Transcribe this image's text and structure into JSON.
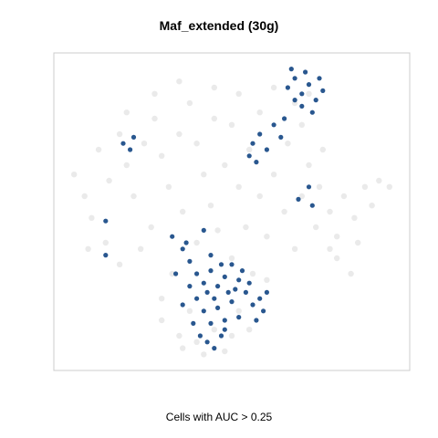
{
  "chart_data": {
    "type": "scatter",
    "title": "Maf_extended (30g)",
    "xlabel": "Cells with AUC > 0.25",
    "ylabel": "",
    "xlim": [
      0,
      1
    ],
    "ylim": [
      0,
      1
    ],
    "colors": {
      "background_points": "#d9d9d9",
      "highlighted_points": "#1d4e89",
      "frame": "#cccccc"
    },
    "regions": [
      {
        "name": "background-upper-left",
        "points": [
          [
            0.05,
            0.62
          ],
          [
            0.08,
            0.55
          ],
          [
            0.12,
            0.7
          ],
          [
            0.15,
            0.6
          ],
          [
            0.18,
            0.75
          ],
          [
            0.1,
            0.48
          ],
          [
            0.2,
            0.65
          ],
          [
            0.25,
            0.72
          ],
          [
            0.22,
            0.55
          ],
          [
            0.28,
            0.8
          ],
          [
            0.3,
            0.68
          ],
          [
            0.32,
            0.58
          ],
          [
            0.35,
            0.75
          ],
          [
            0.27,
            0.45
          ],
          [
            0.14,
            0.4
          ],
          [
            0.18,
            0.33
          ],
          [
            0.09,
            0.38
          ],
          [
            0.24,
            0.38
          ],
          [
            0.38,
            0.85
          ],
          [
            0.4,
            0.72
          ],
          [
            0.42,
            0.62
          ],
          [
            0.45,
            0.8
          ],
          [
            0.36,
            0.5
          ],
          [
            0.44,
            0.52
          ],
          [
            0.48,
            0.65
          ],
          [
            0.5,
            0.78
          ],
          [
            0.52,
            0.58
          ],
          [
            0.46,
            0.44
          ],
          [
            0.4,
            0.4
          ],
          [
            0.33,
            0.3
          ],
          [
            0.3,
            0.22
          ],
          [
            0.38,
            0.18
          ],
          [
            0.55,
            0.7
          ],
          [
            0.58,
            0.55
          ],
          [
            0.6,
            0.42
          ],
          [
            0.54,
            0.45
          ],
          [
            0.5,
            0.35
          ],
          [
            0.56,
            0.3
          ],
          [
            0.62,
            0.62
          ],
          [
            0.65,
            0.5
          ],
          [
            0.68,
            0.38
          ],
          [
            0.6,
            0.28
          ],
          [
            0.7,
            0.55
          ],
          [
            0.66,
            0.72
          ],
          [
            0.58,
            0.82
          ],
          [
            0.52,
            0.88
          ],
          [
            0.45,
            0.9
          ],
          [
            0.35,
            0.92
          ],
          [
            0.28,
            0.88
          ],
          [
            0.2,
            0.82
          ]
        ]
      },
      {
        "name": "background-right",
        "points": [
          [
            0.75,
            0.58
          ],
          [
            0.78,
            0.5
          ],
          [
            0.8,
            0.42
          ],
          [
            0.82,
            0.55
          ],
          [
            0.85,
            0.48
          ],
          [
            0.88,
            0.58
          ],
          [
            0.9,
            0.52
          ],
          [
            0.92,
            0.6
          ],
          [
            0.95,
            0.58
          ],
          [
            0.86,
            0.4
          ],
          [
            0.8,
            0.35
          ],
          [
            0.84,
            0.3
          ],
          [
            0.78,
            0.38
          ],
          [
            0.74,
            0.45
          ],
          [
            0.72,
            0.65
          ],
          [
            0.76,
            0.7
          ],
          [
            0.7,
            0.78
          ],
          [
            0.68,
            0.85
          ],
          [
            0.72,
            0.88
          ],
          [
            0.62,
            0.9
          ]
        ]
      },
      {
        "name": "background-lower",
        "points": [
          [
            0.3,
            0.15
          ],
          [
            0.35,
            0.1
          ],
          [
            0.4,
            0.08
          ],
          [
            0.45,
            0.12
          ],
          [
            0.5,
            0.1
          ],
          [
            0.48,
            0.05
          ],
          [
            0.42,
            0.04
          ],
          [
            0.36,
            0.06
          ],
          [
            0.52,
            0.18
          ],
          [
            0.55,
            0.12
          ]
        ]
      },
      {
        "name": "highlight-top-right",
        "points": [
          [
            0.66,
            0.9
          ],
          [
            0.68,
            0.93
          ],
          [
            0.7,
            0.88
          ],
          [
            0.72,
            0.91
          ],
          [
            0.74,
            0.86
          ],
          [
            0.7,
            0.84
          ],
          [
            0.68,
            0.86
          ],
          [
            0.73,
            0.82
          ],
          [
            0.76,
            0.89
          ],
          [
            0.71,
            0.95
          ],
          [
            0.67,
            0.96
          ],
          [
            0.75,
            0.93
          ]
        ]
      },
      {
        "name": "highlight-mid-right",
        "points": [
          [
            0.56,
            0.72
          ],
          [
            0.58,
            0.75
          ],
          [
            0.6,
            0.7
          ],
          [
            0.62,
            0.78
          ],
          [
            0.64,
            0.74
          ],
          [
            0.55,
            0.68
          ],
          [
            0.65,
            0.8
          ],
          [
            0.57,
            0.66
          ],
          [
            0.72,
            0.58
          ],
          [
            0.69,
            0.54
          ],
          [
            0.73,
            0.52
          ]
        ]
      },
      {
        "name": "highlight-left",
        "points": [
          [
            0.19,
            0.72
          ],
          [
            0.21,
            0.7
          ],
          [
            0.22,
            0.74
          ],
          [
            0.14,
            0.47
          ],
          [
            0.14,
            0.36
          ],
          [
            0.33,
            0.42
          ],
          [
            0.42,
            0.44
          ]
        ]
      },
      {
        "name": "highlight-lower-cluster",
        "points": [
          [
            0.36,
            0.38
          ],
          [
            0.38,
            0.34
          ],
          [
            0.4,
            0.3
          ],
          [
            0.42,
            0.27
          ],
          [
            0.44,
            0.31
          ],
          [
            0.46,
            0.26
          ],
          [
            0.48,
            0.29
          ],
          [
            0.5,
            0.33
          ],
          [
            0.52,
            0.28
          ],
          [
            0.54,
            0.24
          ],
          [
            0.56,
            0.2
          ],
          [
            0.58,
            0.22
          ],
          [
            0.4,
            0.22
          ],
          [
            0.42,
            0.18
          ],
          [
            0.44,
            0.14
          ],
          [
            0.46,
            0.19
          ],
          [
            0.48,
            0.15
          ],
          [
            0.5,
            0.21
          ],
          [
            0.52,
            0.16
          ],
          [
            0.38,
            0.26
          ],
          [
            0.36,
            0.2
          ],
          [
            0.39,
            0.14
          ],
          [
            0.41,
            0.1
          ],
          [
            0.43,
            0.08
          ],
          [
            0.45,
            0.06
          ],
          [
            0.47,
            0.1
          ],
          [
            0.49,
            0.24
          ],
          [
            0.53,
            0.31
          ],
          [
            0.55,
            0.27
          ],
          [
            0.57,
            0.15
          ],
          [
            0.59,
            0.18
          ],
          [
            0.6,
            0.24
          ],
          [
            0.34,
            0.3
          ],
          [
            0.37,
            0.4
          ],
          [
            0.44,
            0.36
          ],
          [
            0.47,
            0.33
          ],
          [
            0.51,
            0.25
          ],
          [
            0.43,
            0.24
          ],
          [
            0.45,
            0.22
          ],
          [
            0.48,
            0.12
          ]
        ]
      }
    ]
  }
}
